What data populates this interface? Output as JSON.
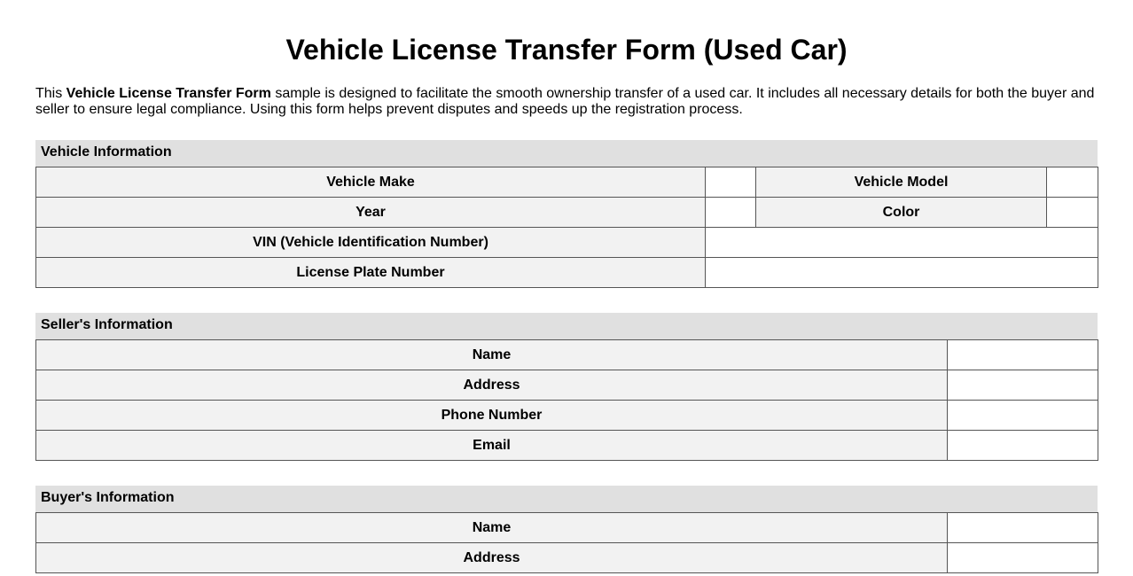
{
  "title": "Vehicle License Transfer Form (Used Car)",
  "intro": {
    "prefix": "This ",
    "bold": "Vehicle License Transfer Form",
    "suffix": " sample is designed to facilitate the smooth ownership transfer of a used car. It includes all necessary details for both the buyer and seller to ensure legal compliance. Using this form helps prevent disputes and speeds up the registration process."
  },
  "vehicle": {
    "heading": "Vehicle Information",
    "make": "Vehicle Make",
    "model": "Vehicle Model",
    "year": "Year",
    "color": "Color",
    "vin": "VIN (Vehicle Identification Number)",
    "plate": "License Plate Number"
  },
  "seller": {
    "heading": "Seller's Information",
    "rows": [
      "Name",
      "Address",
      "Phone Number",
      "Email"
    ]
  },
  "buyer": {
    "heading": "Buyer's Information",
    "rows": [
      "Name",
      "Address"
    ]
  }
}
